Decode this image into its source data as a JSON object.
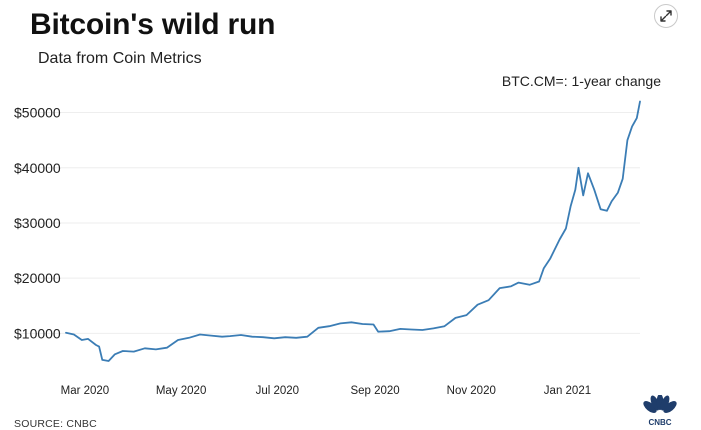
{
  "header": {
    "title": "Bitcoin's wild run",
    "subtitle": "Data from Coin Metrics",
    "expand_icon": "expand-icon"
  },
  "chart_label": "BTC.CM=: 1-year change",
  "footer": {
    "source": "SOURCE: CNBC",
    "logo_text": "CNBC"
  },
  "colors": {
    "line": "#3b7db5",
    "grid": "#eeeeee",
    "axis_text": "#222222"
  },
  "chart_data": {
    "type": "line",
    "title": "Bitcoin's wild run",
    "series": [
      {
        "name": "BTC.CM=",
        "x": [
          "2020-02-18",
          "2020-02-23",
          "2020-02-28",
          "2020-03-03",
          "2020-03-08",
          "2020-03-10",
          "2020-03-12",
          "2020-03-16",
          "2020-03-20",
          "2020-03-25",
          "2020-04-01",
          "2020-04-08",
          "2020-04-15",
          "2020-04-22",
          "2020-04-29",
          "2020-05-06",
          "2020-05-13",
          "2020-05-20",
          "2020-05-27",
          "2020-06-01",
          "2020-06-08",
          "2020-06-15",
          "2020-06-22",
          "2020-06-29",
          "2020-07-06",
          "2020-07-13",
          "2020-07-20",
          "2020-07-27",
          "2020-08-03",
          "2020-08-10",
          "2020-08-17",
          "2020-08-24",
          "2020-08-31",
          "2020-09-03",
          "2020-09-10",
          "2020-09-17",
          "2020-09-24",
          "2020-10-01",
          "2020-10-08",
          "2020-10-15",
          "2020-10-22",
          "2020-10-29",
          "2020-11-05",
          "2020-11-12",
          "2020-11-19",
          "2020-11-26",
          "2020-12-01",
          "2020-12-08",
          "2020-12-14",
          "2020-12-17",
          "2020-12-21",
          "2020-12-27",
          "2020-12-31",
          "2021-01-03",
          "2021-01-06",
          "2021-01-08",
          "2021-01-11",
          "2021-01-14",
          "2021-01-18",
          "2021-01-22",
          "2021-01-26",
          "2021-01-29",
          "2021-02-02",
          "2021-02-05",
          "2021-02-08",
          "2021-02-11",
          "2021-02-14",
          "2021-02-16"
        ],
        "values": [
          10100,
          9800,
          8800,
          9000,
          7900,
          7600,
          5200,
          5000,
          6200,
          6800,
          6700,
          7300,
          7100,
          7400,
          8800,
          9200,
          9800,
          9600,
          9400,
          9500,
          9700,
          9400,
          9300,
          9100,
          9300,
          9200,
          9400,
          11000,
          11300,
          11800,
          12000,
          11700,
          11600,
          10300,
          10400,
          10800,
          10700,
          10600,
          10900,
          11300,
          12800,
          13300,
          15200,
          16000,
          18200,
          18500,
          19200,
          18800,
          19400,
          21800,
          23500,
          27000,
          29000,
          33000,
          36000,
          40000,
          35000,
          39000,
          36000,
          32500,
          32200,
          33900,
          35500,
          38000,
          45000,
          47500,
          49000,
          52000
        ]
      }
    ],
    "xlabel": "",
    "ylabel": "",
    "x_ticks": [
      "Mar 2020",
      "May 2020",
      "Jul 2020",
      "Sep 2020",
      "Nov 2020",
      "Jan 2021"
    ],
    "x_tick_dates": [
      "2020-03-01",
      "2020-05-01",
      "2020-07-01",
      "2020-09-01",
      "2020-11-01",
      "2021-01-01"
    ],
    "y_ticks": [
      "$10000",
      "$20000",
      "$30000",
      "$40000",
      "$50000"
    ],
    "y_tick_values": [
      10000,
      20000,
      30000,
      40000,
      50000
    ],
    "ylim": [
      3000,
      53000
    ],
    "xlim": [
      "2020-02-18",
      "2021-02-16"
    ],
    "grid": true,
    "annotation": "BTC.CM=: 1-year change"
  }
}
